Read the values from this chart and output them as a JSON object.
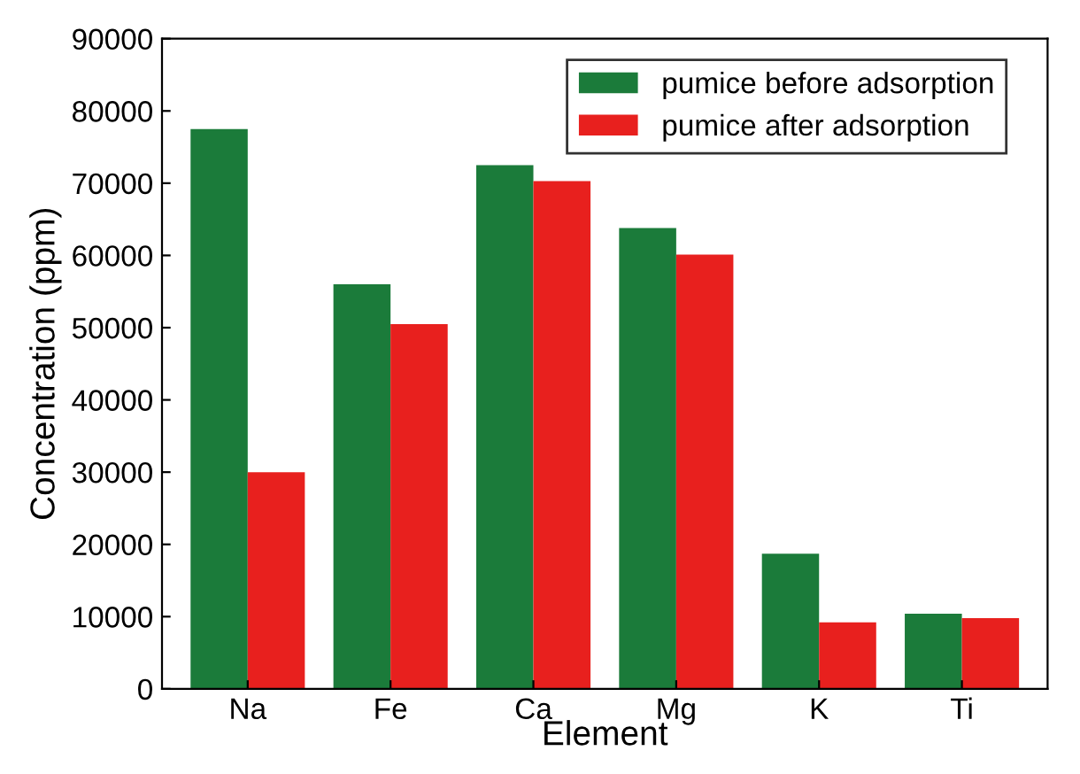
{
  "chart_data": {
    "type": "bar",
    "xlabel": "Element",
    "ylabel": "Concentration (ppm)",
    "categories": [
      "Na",
      "Fe",
      "Ca",
      "Mg",
      "K",
      "Ti"
    ],
    "series": [
      {
        "name": "pumice before adsorption",
        "color": "#1b7b3a",
        "values": [
          77500,
          56000,
          72500,
          63800,
          18700,
          10400
        ]
      },
      {
        "name": "pumice after adsorption",
        "color": "#e8201e",
        "values": [
          30000,
          50500,
          70300,
          60100,
          9200,
          9800
        ]
      }
    ],
    "ylim": [
      0,
      90000
    ],
    "yticks": [
      0,
      10000,
      20000,
      30000,
      40000,
      50000,
      60000,
      70000,
      80000,
      90000
    ],
    "grid": false,
    "legend": "top right"
  }
}
